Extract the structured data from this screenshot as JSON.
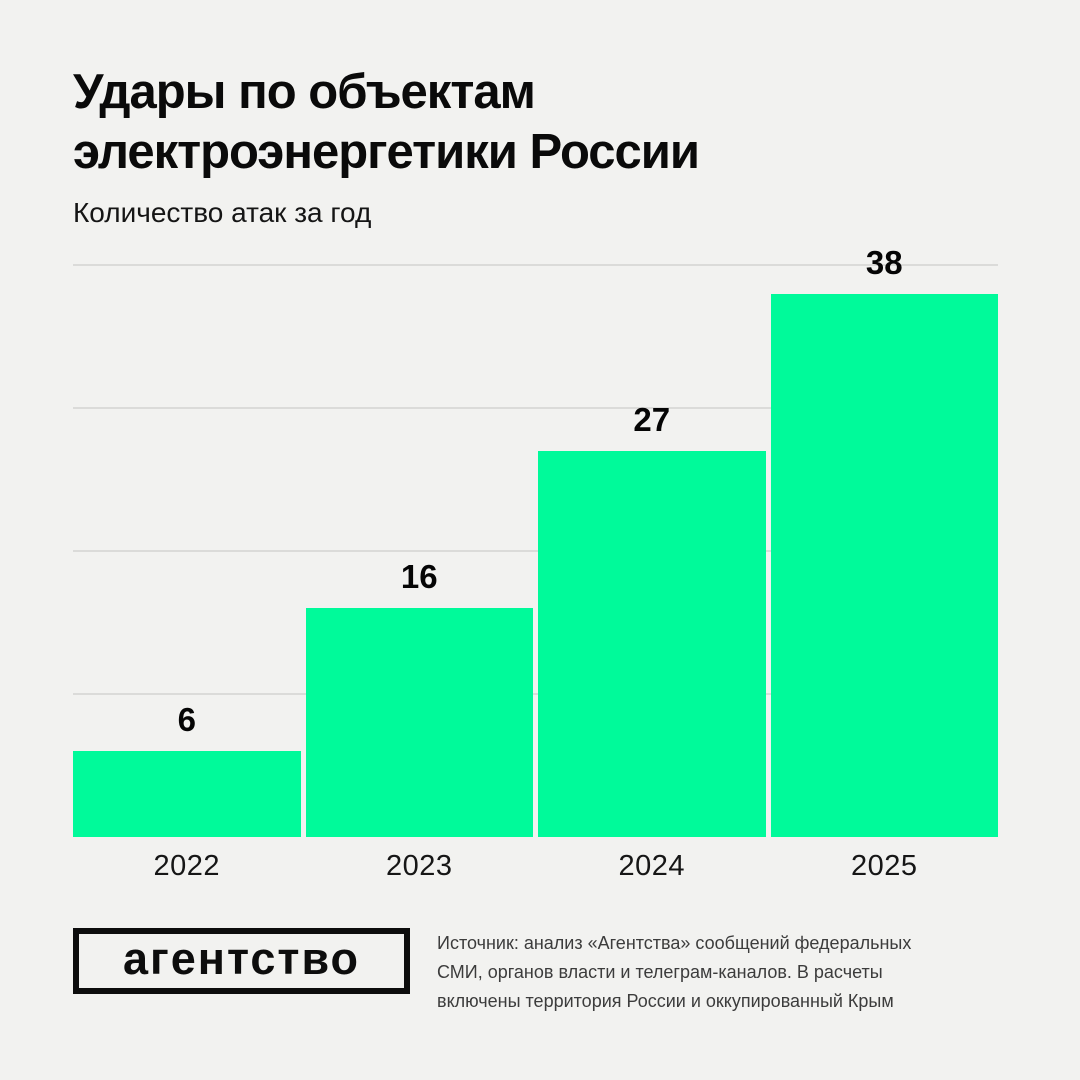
{
  "header": {
    "title_line1": "Удары по объектам",
    "title_line2": "электроэнергетики России",
    "subtitle": "Количество атак за год"
  },
  "chart_data": {
    "type": "bar",
    "title": "Удары по объектам электроэнергетики России",
    "subtitle": "Количество атак за год",
    "categories": [
      "2022",
      "2023",
      "2024",
      "2025"
    ],
    "values": [
      6,
      16,
      27,
      38
    ],
    "xlabel": "",
    "ylabel": "",
    "ylim": [
      0,
      40
    ],
    "gridlines": [
      10,
      20,
      30,
      40
    ],
    "grid": "horizontal-only, no axis lines, no y tick labels",
    "legend": "none",
    "value_labels": "above each bar",
    "bar_color": "#00FA9A",
    "gridline_color": "#DBDBD9",
    "background_color": "#F2F2F0"
  },
  "footer": {
    "logo_text": "агентство",
    "source_lines": [
      "Источник: анализ «Агентства» сообщений федеральных",
      "СМИ, органов власти и телеграм-каналов. В расчеты",
      "включены территория России и оккупированный Крым"
    ]
  },
  "colors": {
    "background": "#F2F2F0",
    "bar": "#00FA9A",
    "gridline": "#DBDBD9",
    "title_text": "#0A0A0A",
    "source_text": "#3C3C3C",
    "logo_border": "#0D0D0D"
  }
}
